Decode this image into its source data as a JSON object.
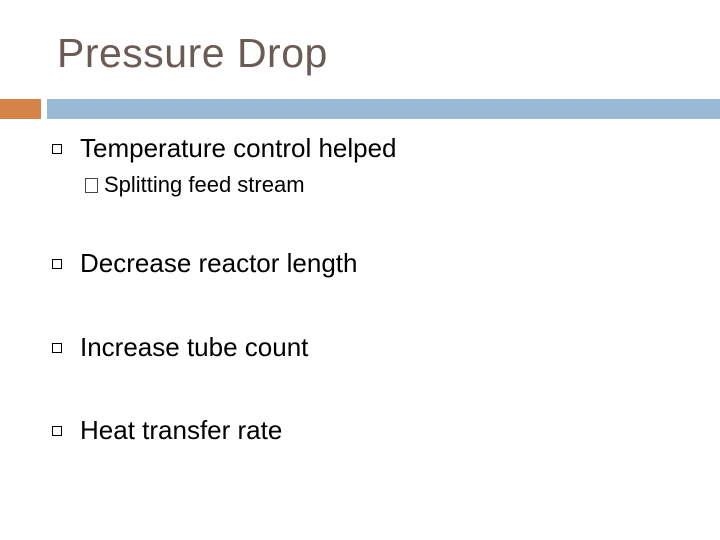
{
  "slide": {
    "title": "Pressure Drop",
    "accent_colors": {
      "left": "#d58348",
      "right": "#9ab9d4"
    },
    "bullets": [
      {
        "text": "Temperature control helped",
        "sub_bullets": [
          {
            "text": "Splitting feed stream"
          }
        ]
      },
      {
        "text": "Decrease reactor length"
      },
      {
        "text": "Increase tube count"
      },
      {
        "text": "Heat transfer rate"
      }
    ],
    "bullet_icon": "square-bullet-icon",
    "sub_bullet_icon": "placeholder-box-icon"
  }
}
